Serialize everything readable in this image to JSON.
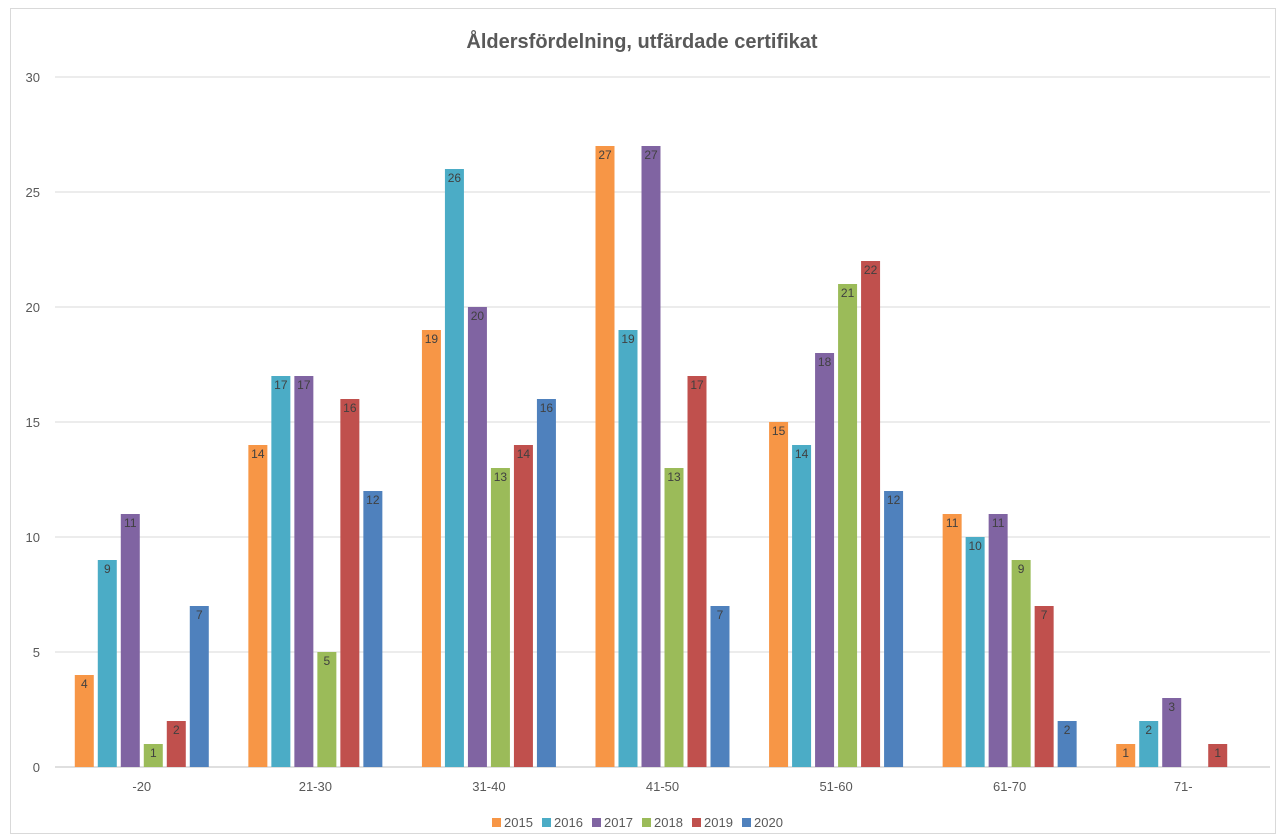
{
  "chart_data": {
    "type": "bar",
    "title": "Åldersfördelning, utfärdade certifikat",
    "xlabel": "",
    "ylabel": "",
    "ylim": [
      0,
      30
    ],
    "yticks": [
      0,
      5,
      10,
      15,
      20,
      25,
      30
    ],
    "grid": true,
    "legend_position": "bottom",
    "data_labels": true,
    "categories": [
      "-20",
      "21-30",
      "31-40",
      "41-50",
      "51-60",
      "61-70",
      "71-"
    ],
    "series": [
      {
        "name": "2015",
        "color": "#f79646",
        "values": [
          4,
          14,
          19,
          27,
          15,
          11,
          1
        ]
      },
      {
        "name": "2016",
        "color": "#4bacc6",
        "values": [
          9,
          17,
          26,
          19,
          14,
          10,
          2
        ]
      },
      {
        "name": "2017",
        "color": "#8064a2",
        "values": [
          11,
          17,
          20,
          27,
          18,
          11,
          3
        ]
      },
      {
        "name": "2018",
        "color": "#9bbb59",
        "values": [
          1,
          5,
          13,
          13,
          21,
          9,
          null
        ]
      },
      {
        "name": "2019",
        "color": "#c0504d",
        "values": [
          2,
          16,
          14,
          17,
          22,
          7,
          1
        ]
      },
      {
        "name": "2020",
        "color": "#4f81bd",
        "values": [
          7,
          12,
          16,
          7,
          12,
          2,
          null
        ]
      }
    ]
  }
}
